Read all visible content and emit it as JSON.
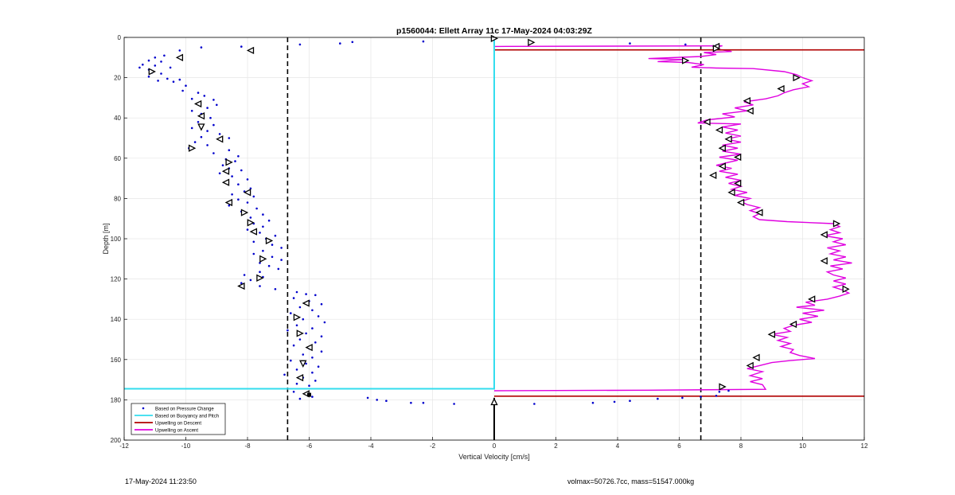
{
  "chart_data": {
    "type": "scatter",
    "title": "p1560044: Ellett Array 11c 17-May-2024 04:03:29Z",
    "xlabel": "Vertical Velocity [cm/s]",
    "ylabel": "Depth [m]",
    "xlim": [
      -12,
      12
    ],
    "ylim": [
      0,
      200
    ],
    "y_reversed": true,
    "grid": true,
    "x_ticks": [
      -12,
      -10,
      -8,
      -6,
      -4,
      -2,
      0,
      2,
      4,
      6,
      8,
      10,
      12
    ],
    "y_ticks": [
      0,
      20,
      40,
      60,
      80,
      100,
      120,
      140,
      160,
      180,
      200
    ],
    "legend_position": "bottom-left",
    "legend": [
      {
        "label": "Based on Pressure Change",
        "style": "dots",
        "color": "#0000cc"
      },
      {
        "label": "Based on Buoyancy and Pitch",
        "style": "line",
        "color": "#33ddee"
      },
      {
        "label": "Upwelling on Descent",
        "style": "line",
        "color": "#b00000"
      },
      {
        "label": "Upwelling on Ascent",
        "style": "line",
        "color": "#e000e0"
      }
    ],
    "threshold_lines_x": [
      -6.7,
      6.7
    ],
    "zero_line_x": 0,
    "descent_trace": [
      [
        0,
        0
      ],
      [
        0,
        174.5
      ],
      [
        -12,
        174.5
      ]
    ],
    "descent_upwelling_lines": [
      {
        "x": [
          0,
          12
        ],
        "y": 6.2
      },
      {
        "x": [
          0,
          12
        ],
        "y": 178.2
      }
    ],
    "pressure_change_points": [
      [
        -6.3,
        3.5
      ],
      [
        -5.0,
        3.0
      ],
      [
        -4.6,
        2.3
      ],
      [
        -2.3,
        2.0
      ],
      [
        1.2,
        2.5
      ],
      [
        4.4,
        3.0
      ],
      [
        6.2,
        3.5
      ],
      [
        7.2,
        4.0
      ],
      [
        -9.5,
        5.0
      ],
      [
        -10.2,
        6.5
      ],
      [
        -8.2,
        4.6
      ],
      [
        -7.9,
        6.5
      ],
      [
        -10.7,
        9.0
      ],
      [
        -11.0,
        10.0
      ],
      [
        -11.2,
        11.5
      ],
      [
        -10.8,
        12.0
      ],
      [
        -11.4,
        13.5
      ],
      [
        -11.0,
        14.0
      ],
      [
        -10.5,
        15.0
      ],
      [
        -11.5,
        15.0
      ],
      [
        -11.2,
        16.0
      ],
      [
        -11.1,
        17.5
      ],
      [
        -10.8,
        18.0
      ],
      [
        -11.2,
        19.5
      ],
      [
        -10.6,
        20.5
      ],
      [
        -10.9,
        21.5
      ],
      [
        -10.4,
        22.0
      ],
      [
        -10.2,
        21.0
      ],
      [
        -10.0,
        24.0
      ],
      [
        -10.1,
        26.5
      ],
      [
        -9.6,
        27.5
      ],
      [
        -9.4,
        29.0
      ],
      [
        -9.8,
        30.5
      ],
      [
        -9.1,
        31.0
      ],
      [
        -9.6,
        33.0
      ],
      [
        -9.0,
        33.5
      ],
      [
        -9.3,
        35.0
      ],
      [
        -9.8,
        36.5
      ],
      [
        -9.5,
        38.0
      ],
      [
        -9.2,
        40.0
      ],
      [
        -9.6,
        42.0
      ],
      [
        -9.1,
        43.5
      ],
      [
        -9.8,
        45.0
      ],
      [
        -9.3,
        46.5
      ],
      [
        -8.9,
        48.0
      ],
      [
        -9.5,
        49.5
      ],
      [
        -8.6,
        50.0
      ],
      [
        -9.7,
        52.0
      ],
      [
        -9.3,
        53.5
      ],
      [
        -9.9,
        55.0
      ],
      [
        -8.6,
        56.0
      ],
      [
        -9.1,
        57.5
      ],
      [
        -8.3,
        59.0
      ],
      [
        -8.7,
        60.5
      ],
      [
        -8.4,
        61.5
      ],
      [
        -8.8,
        63.5
      ],
      [
        -8.6,
        65.0
      ],
      [
        -8.2,
        66.0
      ],
      [
        -8.9,
        67.5
      ],
      [
        -8.5,
        69.0
      ],
      [
        -8.0,
        70.5
      ],
      [
        -8.7,
        72.0
      ],
      [
        -8.3,
        73.0
      ],
      [
        -7.9,
        75.0
      ],
      [
        -8.1,
        76.5
      ],
      [
        -8.5,
        78.0
      ],
      [
        -7.8,
        79.0
      ],
      [
        -8.3,
        80.5
      ],
      [
        -8.0,
        82.0
      ],
      [
        -8.6,
        83.5
      ],
      [
        -7.7,
        85.0
      ],
      [
        -8.2,
        86.5
      ],
      [
        -7.5,
        88.0
      ],
      [
        -7.9,
        89.5
      ],
      [
        -7.3,
        91.0
      ],
      [
        -7.8,
        92.5
      ],
      [
        -7.5,
        94.0
      ],
      [
        -8.0,
        95.5
      ],
      [
        -7.6,
        97.0
      ],
      [
        -7.1,
        98.5
      ],
      [
        -7.4,
        100.0
      ],
      [
        -7.8,
        101.5
      ],
      [
        -7.2,
        103.0
      ],
      [
        -6.9,
        104.5
      ],
      [
        -7.5,
        106.0
      ],
      [
        -7.8,
        107.5
      ],
      [
        -7.2,
        109.0
      ],
      [
        -6.9,
        110.5
      ],
      [
        -7.6,
        112.0
      ],
      [
        -7.3,
        113.5
      ],
      [
        -7.0,
        115.0
      ],
      [
        -7.6,
        116.5
      ],
      [
        -8.1,
        118.0
      ],
      [
        -7.5,
        119.0
      ],
      [
        -7.9,
        120.5
      ],
      [
        -8.2,
        122.0
      ],
      [
        -7.6,
        123.5
      ],
      [
        -7.1,
        125.0
      ],
      [
        -6.4,
        126.5
      ],
      [
        -6.1,
        127.5
      ],
      [
        -5.8,
        128.0
      ],
      [
        -6.5,
        129.5
      ],
      [
        -6.0,
        131.0
      ],
      [
        -5.6,
        132.5
      ],
      [
        -6.3,
        134.0
      ],
      [
        -5.9,
        135.5
      ],
      [
        -6.6,
        137.0
      ],
      [
        -5.7,
        138.5
      ],
      [
        -6.2,
        140.0
      ],
      [
        -5.5,
        141.5
      ],
      [
        -6.4,
        143.0
      ],
      [
        -5.9,
        144.5
      ],
      [
        -6.7,
        145.5
      ],
      [
        -6.1,
        147.0
      ],
      [
        -5.6,
        148.5
      ],
      [
        -6.3,
        150.0
      ],
      [
        -5.8,
        151.5
      ],
      [
        -6.5,
        153.0
      ],
      [
        -6.0,
        154.5
      ],
      [
        -5.6,
        156.0
      ],
      [
        -6.2,
        157.5
      ],
      [
        -5.9,
        159.0
      ],
      [
        -6.6,
        160.5
      ],
      [
        -6.1,
        162.0
      ],
      [
        -5.7,
        163.5
      ],
      [
        -6.4,
        165.0
      ],
      [
        -5.9,
        166.5
      ],
      [
        -6.8,
        167.5
      ],
      [
        -6.2,
        169.0
      ],
      [
        -5.8,
        170.5
      ],
      [
        -6.4,
        172.0
      ],
      [
        -6.0,
        173.0
      ],
      [
        -6.5,
        176.0
      ],
      [
        -6.1,
        177.0
      ],
      [
        -5.9,
        178.5
      ],
      [
        -6.3,
        179.5
      ],
      [
        -4.1,
        179.0
      ],
      [
        -3.8,
        180.0
      ],
      [
        -3.5,
        180.5
      ],
      [
        -2.7,
        181.5
      ],
      [
        -2.3,
        181.5
      ],
      [
        -1.3,
        182.0
      ],
      [
        1.3,
        182.0
      ],
      [
        3.2,
        181.5
      ],
      [
        3.9,
        181.0
      ],
      [
        4.4,
        180.5
      ],
      [
        5.3,
        179.5
      ],
      [
        6.1,
        179.0
      ],
      [
        6.7,
        178.5
      ],
      [
        7.2,
        178.0
      ],
      [
        7.3,
        176.0
      ],
      [
        7.6,
        175.5
      ]
    ],
    "pressure_change_markers": [
      [
        -7.9,
        6.5,
        "left"
      ],
      [
        -10.2,
        10.0,
        "left"
      ],
      [
        -11.1,
        17.0,
        "right"
      ],
      [
        -9.6,
        33.0,
        "left"
      ],
      [
        -9.5,
        39.0,
        "left"
      ],
      [
        -9.5,
        44.5,
        "down"
      ],
      [
        -8.9,
        50.5,
        "left"
      ],
      [
        -9.8,
        55.0,
        "right"
      ],
      [
        -8.6,
        62.0,
        "right"
      ],
      [
        -8.7,
        66.5,
        "left"
      ],
      [
        -8.7,
        72.0,
        "left"
      ],
      [
        -8.0,
        77.0,
        "left"
      ],
      [
        -8.6,
        82.0,
        "left"
      ],
      [
        -8.1,
        87.0,
        "right"
      ],
      [
        -7.9,
        92.0,
        "right"
      ],
      [
        -7.8,
        96.5,
        "left"
      ],
      [
        -7.3,
        101.0,
        "right"
      ],
      [
        -7.5,
        110.0,
        "right"
      ],
      [
        -7.6,
        119.5,
        "right"
      ],
      [
        -8.2,
        123.5,
        "left"
      ],
      [
        -6.1,
        132.0,
        "left"
      ],
      [
        -6.4,
        139.0,
        "right"
      ],
      [
        -6.3,
        147.0,
        "right"
      ],
      [
        -6.0,
        154.0,
        "left"
      ],
      [
        -6.2,
        162.0,
        "down"
      ],
      [
        -6.3,
        169.0,
        "left"
      ],
      [
        -6.1,
        177.0,
        "left"
      ],
      [
        -6.0,
        177.5,
        "square"
      ],
      [
        0.0,
        0.5,
        "right"
      ],
      [
        1.2,
        2.5,
        "right"
      ],
      [
        7.2,
        4.5,
        "left"
      ],
      [
        7.2,
        5.5,
        "right"
      ],
      [
        6.2,
        11.5,
        "right"
      ],
      [
        9.8,
        20.0,
        "right"
      ],
      [
        9.3,
        25.5,
        "left"
      ],
      [
        8.2,
        31.5,
        "left"
      ],
      [
        8.3,
        36.5,
        "left"
      ],
      [
        6.9,
        42.0,
        "left"
      ],
      [
        7.3,
        46.0,
        "left"
      ],
      [
        7.6,
        50.5,
        "left"
      ],
      [
        7.4,
        55.0,
        "left"
      ],
      [
        7.9,
        59.5,
        "left"
      ],
      [
        7.4,
        64.0,
        "left"
      ],
      [
        7.1,
        68.5,
        "left"
      ],
      [
        7.9,
        72.5,
        "left"
      ],
      [
        7.7,
        77.0,
        "left"
      ],
      [
        8.0,
        82.0,
        "left"
      ],
      [
        8.6,
        87.0,
        "left"
      ],
      [
        11.1,
        92.5,
        "right"
      ],
      [
        10.7,
        98.0,
        "left"
      ],
      [
        10.7,
        111.0,
        "left"
      ],
      [
        11.4,
        125.0,
        "right"
      ],
      [
        10.3,
        130.0,
        "left"
      ],
      [
        9.7,
        142.5,
        "left"
      ],
      [
        9.0,
        147.5,
        "left"
      ],
      [
        8.5,
        159.0,
        "left"
      ],
      [
        8.3,
        163.0,
        "left"
      ],
      [
        7.4,
        173.5,
        "right"
      ],
      [
        0.0,
        181.0,
        "up"
      ]
    ],
    "ascent_upwelling_profile": [
      [
        0.0,
        175.5
      ],
      [
        5.0,
        175.2
      ],
      [
        8.8,
        174.8
      ],
      [
        8.7,
        172.5
      ],
      [
        8.3,
        171.0
      ],
      [
        8.7,
        169.5
      ],
      [
        8.3,
        168.0
      ],
      [
        8.7,
        166.0
      ],
      [
        8.2,
        164.5
      ],
      [
        8.6,
        163.0
      ],
      [
        9.0,
        161.5
      ],
      [
        9.6,
        160.5
      ],
      [
        10.4,
        159.5
      ],
      [
        9.9,
        158.0
      ],
      [
        9.6,
        156.5
      ],
      [
        9.7,
        155.0
      ],
      [
        9.3,
        153.5
      ],
      [
        9.6,
        152.0
      ],
      [
        9.2,
        150.5
      ],
      [
        9.5,
        149.0
      ],
      [
        9.0,
        147.5
      ],
      [
        9.6,
        146.0
      ],
      [
        9.4,
        144.5
      ],
      [
        9.7,
        143.0
      ],
      [
        10.3,
        141.5
      ],
      [
        9.9,
        140.0
      ],
      [
        10.5,
        138.5
      ],
      [
        10.0,
        137.0
      ],
      [
        10.7,
        135.5
      ],
      [
        9.8,
        134.0
      ],
      [
        10.4,
        133.0
      ],
      [
        10.1,
        131.5
      ],
      [
        10.8,
        130.0
      ],
      [
        11.2,
        128.5
      ],
      [
        11.5,
        127.0
      ],
      [
        11.3,
        125.5
      ],
      [
        11.0,
        124.0
      ],
      [
        11.4,
        122.5
      ],
      [
        11.0,
        121.0
      ],
      [
        11.4,
        119.5
      ],
      [
        11.0,
        118.0
      ],
      [
        10.8,
        116.5
      ],
      [
        11.3,
        115.0
      ],
      [
        10.9,
        113.5
      ],
      [
        11.6,
        112.0
      ],
      [
        11.0,
        110.5
      ],
      [
        11.4,
        109.0
      ],
      [
        10.9,
        107.5
      ],
      [
        11.2,
        106.0
      ],
      [
        10.8,
        104.5
      ],
      [
        11.4,
        103.0
      ],
      [
        11.0,
        101.5
      ],
      [
        11.3,
        100.0
      ],
      [
        10.7,
        98.5
      ],
      [
        11.2,
        97.0
      ],
      [
        10.9,
        95.5
      ],
      [
        11.2,
        94.0
      ],
      [
        11.0,
        92.5
      ],
      [
        9.5,
        91.5
      ],
      [
        8.6,
        90.5
      ],
      [
        8.4,
        89.0
      ],
      [
        8.6,
        87.5
      ],
      [
        8.3,
        86.0
      ],
      [
        8.6,
        84.5
      ],
      [
        8.2,
        83.0
      ],
      [
        8.0,
        81.5
      ],
      [
        8.3,
        80.0
      ],
      [
        7.8,
        78.5
      ],
      [
        8.2,
        77.0
      ],
      [
        7.7,
        75.5
      ],
      [
        8.0,
        74.0
      ],
      [
        7.6,
        72.5
      ],
      [
        8.0,
        71.0
      ],
      [
        7.5,
        69.5
      ],
      [
        7.9,
        68.0
      ],
      [
        7.3,
        66.5
      ],
      [
        7.7,
        65.0
      ],
      [
        7.2,
        63.5
      ],
      [
        7.6,
        62.0
      ],
      [
        7.9,
        61.0
      ],
      [
        7.3,
        59.5
      ],
      [
        8.0,
        58.0
      ],
      [
        7.4,
        56.5
      ],
      [
        7.9,
        55.0
      ],
      [
        7.4,
        53.5
      ],
      [
        8.0,
        52.0
      ],
      [
        7.5,
        50.5
      ],
      [
        8.0,
        49.0
      ],
      [
        7.5,
        47.5
      ],
      [
        7.9,
        46.0
      ],
      [
        7.4,
        44.5
      ],
      [
        8.0,
        43.0
      ],
      [
        6.6,
        42.5
      ],
      [
        6.9,
        41.0
      ],
      [
        7.8,
        39.5
      ],
      [
        7.4,
        38.0
      ],
      [
        8.2,
        36.5
      ],
      [
        7.8,
        35.0
      ],
      [
        8.4,
        33.5
      ],
      [
        8.1,
        32.0
      ],
      [
        8.8,
        30.5
      ],
      [
        9.2,
        29.0
      ],
      [
        9.4,
        27.5
      ],
      [
        9.7,
        26.0
      ],
      [
        10.2,
        24.5
      ],
      [
        10.0,
        23.0
      ],
      [
        10.3,
        21.5
      ],
      [
        10.0,
        20.0
      ],
      [
        9.8,
        18.5
      ],
      [
        9.4,
        17.0
      ],
      [
        8.4,
        15.5
      ],
      [
        7.2,
        15.2
      ],
      [
        6.4,
        14.8
      ],
      [
        6.8,
        13.5
      ],
      [
        6.3,
        12.5
      ],
      [
        5.3,
        12.0
      ],
      [
        6.2,
        11.0
      ],
      [
        5.0,
        10.5
      ],
      [
        6.7,
        9.5
      ],
      [
        7.2,
        8.5
      ],
      [
        6.8,
        7.5
      ],
      [
        7.7,
        7.0
      ],
      [
        7.3,
        6.0
      ],
      [
        7.1,
        5.0
      ],
      [
        7.4,
        4.2
      ],
      [
        0.0,
        4.5
      ]
    ]
  },
  "footer": {
    "timestamp": "17-May-2024 11:23:50",
    "summary": "volmax=50726.7cc, mass=51547.000kg"
  }
}
